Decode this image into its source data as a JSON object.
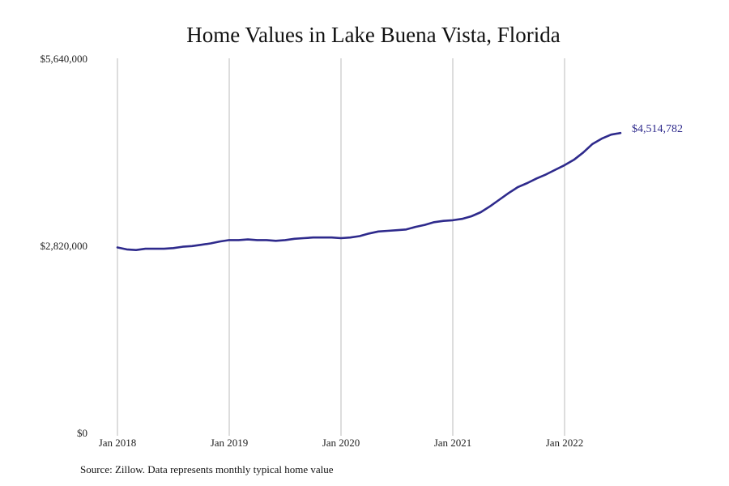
{
  "chart_data": {
    "type": "line",
    "title": "Home Values in Lake Buena Vista, Florida",
    "xlabel": "",
    "ylabel": "",
    "ylim": [
      0,
      5640000
    ],
    "y_ticks": [
      {
        "value": 0,
        "label": "$0"
      },
      {
        "value": 2820000,
        "label": "$2,820,000"
      },
      {
        "value": 5640000,
        "label": "$5,640,000"
      }
    ],
    "x_ticks": [
      "Jan 2018",
      "Jan 2019",
      "Jan 2020",
      "Jan 2021",
      "Jan 2022"
    ],
    "grid": "vertical",
    "colors": {
      "line": "#2e2a8c",
      "grid": "#bbbbbb"
    },
    "end_label": "$4,514,782",
    "series": [
      {
        "x": [
          "2018-01",
          "2018-02",
          "2018-03",
          "2018-04",
          "2018-05",
          "2018-06",
          "2018-07",
          "2018-08",
          "2018-09",
          "2018-10",
          "2018-11",
          "2018-12",
          "2019-01",
          "2019-02",
          "2019-03",
          "2019-04",
          "2019-05",
          "2019-06",
          "2019-07",
          "2019-08",
          "2019-09",
          "2019-10",
          "2019-11",
          "2019-12",
          "2020-01",
          "2020-02",
          "2020-03",
          "2020-04",
          "2020-05",
          "2020-06",
          "2020-07",
          "2020-08",
          "2020-09",
          "2020-10",
          "2020-11",
          "2020-12",
          "2021-01",
          "2021-02",
          "2021-03",
          "2021-04",
          "2021-05",
          "2021-06",
          "2021-07",
          "2021-08",
          "2021-09",
          "2021-10",
          "2021-11",
          "2021-12",
          "2022-01",
          "2022-02",
          "2022-03",
          "2022-04",
          "2022-05",
          "2022-06",
          "2022-07"
        ],
        "values": [
          2790000,
          2760000,
          2750000,
          2770000,
          2770000,
          2770000,
          2780000,
          2800000,
          2810000,
          2830000,
          2850000,
          2880000,
          2900000,
          2900000,
          2910000,
          2900000,
          2900000,
          2890000,
          2900000,
          2920000,
          2930000,
          2940000,
          2940000,
          2940000,
          2930000,
          2940000,
          2960000,
          3000000,
          3030000,
          3040000,
          3050000,
          3060000,
          3100000,
          3130000,
          3170000,
          3190000,
          3200000,
          3220000,
          3260000,
          3320000,
          3410000,
          3510000,
          3610000,
          3700000,
          3760000,
          3830000,
          3890000,
          3960000,
          4030000,
          4110000,
          4220000,
          4350000,
          4430000,
          4490000,
          4514782
        ]
      }
    ]
  },
  "source_text": "Source: Zillow. Data represents monthly typical home value"
}
